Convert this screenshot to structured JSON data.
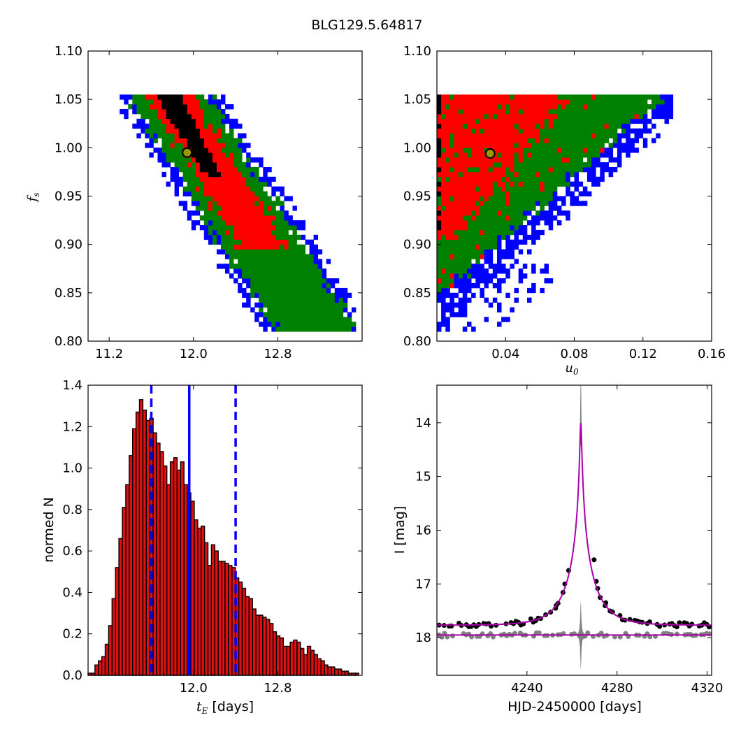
{
  "figure": {
    "title": "BLG129.5.64817"
  },
  "colors": {
    "inner": "#ff0000",
    "mid": "#008000",
    "outer": "#0000ff",
    "best": "#000000",
    "marker_fill": "#999900",
    "hist_bar": "#dd1111",
    "model": "#aa00aa",
    "data": "#000000",
    "residual": "#808080",
    "interval": "#0000ff"
  },
  "chart_data": [
    {
      "id": "panel-ts-fs",
      "type": "heatmap",
      "xlabel": "",
      "ylabel": "f_s",
      "xlim": [
        11.0,
        13.6
      ],
      "ylim": [
        0.8,
        1.1
      ],
      "xticks": [
        11.2,
        12.0,
        12.8
      ],
      "xtick_labels": [
        "11.2",
        "12.0",
        "12.8"
      ],
      "yticks": [
        0.8,
        0.85,
        0.9,
        0.95,
        1.0,
        1.05,
        1.1
      ],
      "ytick_labels": [
        "0.80",
        "0.85",
        "0.90",
        "0.95",
        "1.00",
        "1.05",
        "1.10"
      ],
      "levels": [
        "black",
        "red",
        "green",
        "blue"
      ],
      "best_fit": {
        "x": 11.94,
        "y": 0.995
      }
    },
    {
      "id": "panel-u0-fs",
      "type": "heatmap",
      "xlabel": "u_0",
      "ylabel": "",
      "xlim": [
        0.0,
        0.16
      ],
      "ylim": [
        0.8,
        1.1
      ],
      "xticks": [
        0.04,
        0.08,
        0.12,
        0.16
      ],
      "xtick_labels": [
        "0.04",
        "0.08",
        "0.12",
        "0.16"
      ],
      "yticks": [
        0.8,
        0.85,
        0.9,
        0.95,
        1.0,
        1.05,
        1.1
      ],
      "ytick_labels": [
        "0.80",
        "0.85",
        "0.90",
        "0.95",
        "1.00",
        "1.05",
        "1.10"
      ],
      "levels": [
        "black",
        "red",
        "green",
        "blue"
      ],
      "best_fit": {
        "x": 0.031,
        "y": 0.994
      }
    },
    {
      "id": "panel-hist",
      "type": "bar",
      "xlabel": "t_E [days]",
      "ylabel": "normed N",
      "xlim": [
        11.0,
        13.6
      ],
      "ylim": [
        0.0,
        1.4
      ],
      "xticks": [
        12.0,
        12.8
      ],
      "xtick_labels": [
        "12.0",
        "12.8"
      ],
      "yticks": [
        0.0,
        0.2,
        0.4,
        0.6,
        0.8,
        1.0,
        1.2,
        1.4
      ],
      "ytick_labels": [
        "0.0",
        "0.2",
        "0.4",
        "0.6",
        "0.8",
        "1.0",
        "1.2",
        "1.4"
      ],
      "bin_width": 0.0325,
      "bin_start": 11.0,
      "values": [
        0.01,
        0.01,
        0.05,
        0.07,
        0.09,
        0.15,
        0.24,
        0.37,
        0.52,
        0.66,
        0.81,
        0.92,
        1.06,
        1.19,
        1.27,
        1.33,
        1.28,
        1.23,
        1.24,
        1.17,
        1.12,
        1.08,
        1.01,
        0.92,
        1.03,
        1.05,
        0.99,
        1.03,
        0.92,
        0.88,
        0.84,
        0.75,
        0.71,
        0.72,
        0.64,
        0.53,
        0.63,
        0.6,
        0.55,
        0.55,
        0.54,
        0.53,
        0.52,
        0.47,
        0.45,
        0.42,
        0.38,
        0.37,
        0.32,
        0.29,
        0.29,
        0.28,
        0.27,
        0.25,
        0.21,
        0.19,
        0.18,
        0.14,
        0.14,
        0.16,
        0.17,
        0.16,
        0.13,
        0.1,
        0.14,
        0.12,
        0.1,
        0.08,
        0.07,
        0.05,
        0.04,
        0.04,
        0.03,
        0.03,
        0.02,
        0.02,
        0.01,
        0.01,
        0.01,
        0.0
      ],
      "median": 11.96,
      "lower": 11.6,
      "upper": 12.4
    },
    {
      "id": "panel-lightcurve",
      "type": "line",
      "xlabel": "HJD-2450000 [days]",
      "ylabel": "I [mag]",
      "xlim": [
        4200,
        4322
      ],
      "ylim": [
        18.7,
        13.3
      ],
      "xticks": [
        4240,
        4280,
        4320
      ],
      "xtick_labels": [
        "4240",
        "4280",
        "4320"
      ],
      "yticks": [
        14,
        15,
        16,
        17,
        18
      ],
      "ytick_labels": [
        "14",
        "15",
        "16",
        "17",
        "18"
      ],
      "model": {
        "t0": 4263.9,
        "tE": 11.96,
        "u0": 0.031,
        "fs": 0.994,
        "baseline": 17.77
      },
      "residual_offset": 17.95,
      "peak_points": [
        {
          "t": 4256.8,
          "mag": 17.0
        },
        {
          "t": 4258.5,
          "mag": 16.75
        },
        {
          "t": 4269.8,
          "mag": 16.55
        },
        {
          "t": 4270.8,
          "mag": 16.95
        },
        {
          "t": 4253.0,
          "mag": 17.4
        },
        {
          "t": 4275.0,
          "mag": 17.35
        }
      ]
    }
  ]
}
